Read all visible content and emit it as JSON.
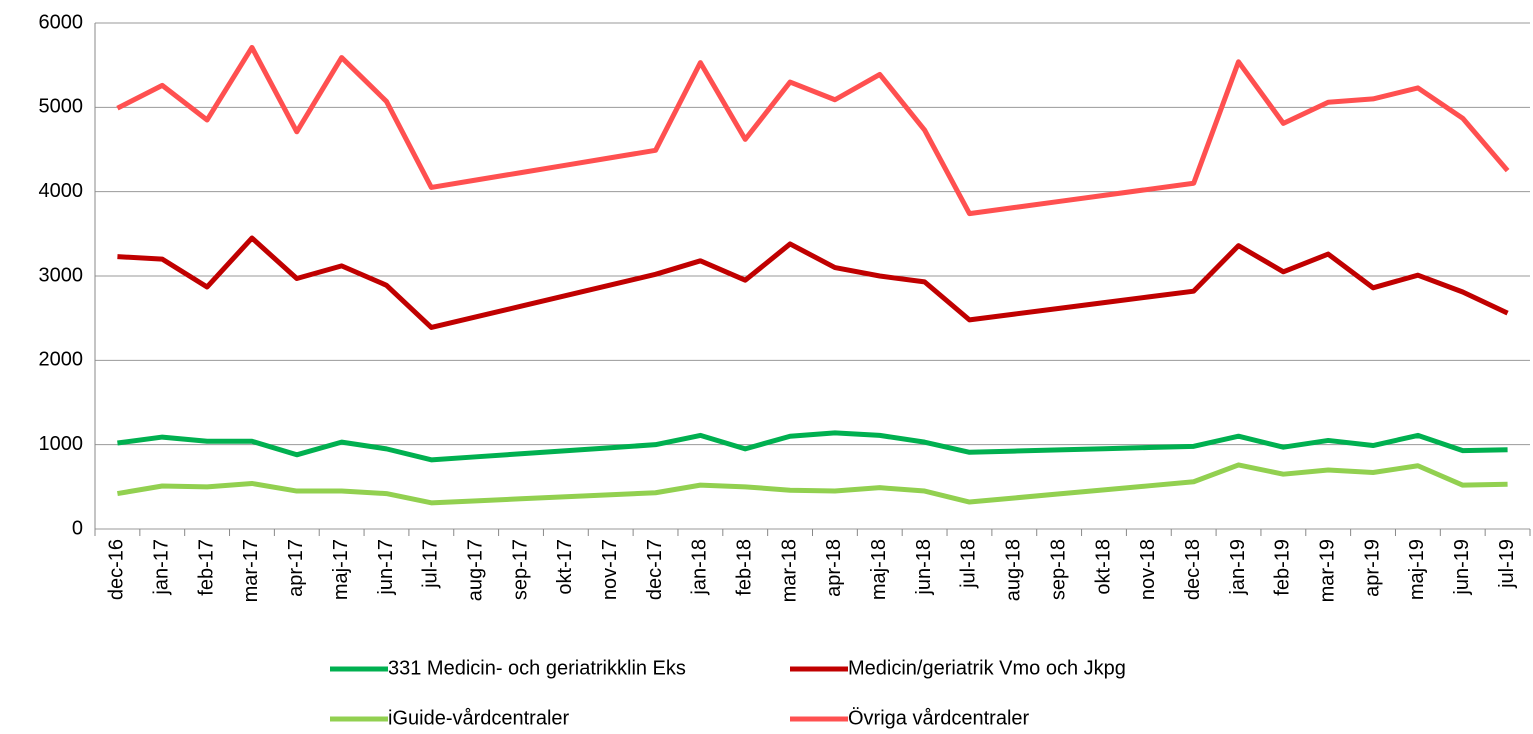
{
  "chart_data": {
    "type": "line",
    "categories": [
      "dec-16",
      "jan-17",
      "feb-17",
      "mar-17",
      "apr-17",
      "maj-17",
      "jun-17",
      "jul-17",
      "aug-17",
      "sep-17",
      "okt-17",
      "nov-17",
      "dec-17",
      "jan-18",
      "feb-18",
      "mar-18",
      "apr-18",
      "maj-18",
      "jun-18",
      "jul-18",
      "aug-18",
      "sep-18",
      "okt-18",
      "nov-18",
      "dec-18",
      "jan-19",
      "feb-19",
      "mar-19",
      "apr-19",
      "maj-19",
      "jun-19",
      "jul-19"
    ],
    "series": [
      {
        "name": "331 Medicin- och geriatrikklin Eks",
        "color": "#00b050",
        "values": [
          1020,
          1090,
          1040,
          1040,
          880,
          1030,
          950,
          820,
          856,
          892,
          928,
          964,
          1000,
          1110,
          950,
          1100,
          1140,
          1110,
          1030,
          910,
          924,
          938,
          952,
          966,
          980,
          1100,
          970,
          1050,
          990,
          1110,
          930,
          940
        ]
      },
      {
        "name": "Medicin/geriatrik Vmo och Jkpg",
        "color": "#c00000",
        "values": [
          3230,
          3200,
          2870,
          3450,
          2970,
          3120,
          2890,
          2390,
          2516,
          2642,
          2768,
          2894,
          3020,
          3180,
          2950,
          3380,
          3100,
          3000,
          2930,
          2480,
          2548,
          2616,
          2684,
          2752,
          2820,
          3360,
          3050,
          3260,
          2860,
          3010,
          2810,
          2560
        ]
      },
      {
        "name": "iGuide-vårdcentraler",
        "color": "#92d050",
        "values": [
          420,
          510,
          500,
          540,
          450,
          450,
          420,
          310,
          334,
          358,
          382,
          406,
          430,
          520,
          500,
          460,
          450,
          490,
          450,
          320,
          368,
          416,
          464,
          512,
          560,
          760,
          650,
          700,
          670,
          750,
          520,
          530
        ]
      },
      {
        "name": "Övriga vårdcentraler",
        "color": "#ff5050",
        "values": [
          4990,
          5260,
          4850,
          5710,
          4710,
          5590,
          5070,
          4050,
          4138,
          4226,
          4314,
          4402,
          4490,
          5530,
          4620,
          5300,
          5090,
          5390,
          4730,
          3740,
          3812,
          3884,
          3956,
          4028,
          4100,
          5540,
          4810,
          5060,
          5100,
          5230,
          4870,
          4250
        ]
      }
    ],
    "ylim": [
      0,
      6000
    ],
    "yticks": [
      0,
      1000,
      2000,
      3000,
      4000,
      5000,
      6000
    ],
    "grid": true
  }
}
